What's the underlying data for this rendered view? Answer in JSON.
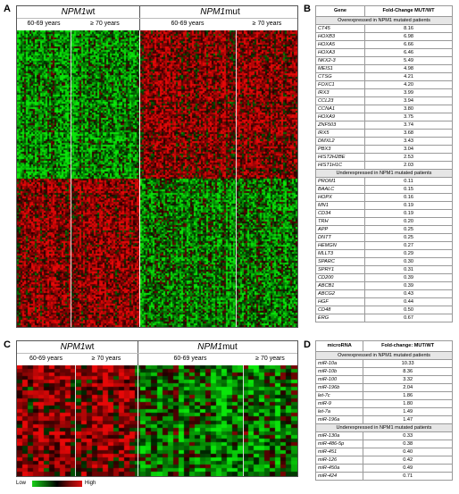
{
  "panels": {
    "a": "A",
    "b": "B",
    "c": "C",
    "d": "D"
  },
  "heatmap_a": {
    "group_wt": "NPM1wt",
    "group_mut": "NPM1mut",
    "ages": [
      "60-69 years",
      "≥ 70 years",
      "60-69 years",
      "≥ 70 years"
    ]
  },
  "heatmap_c": {
    "group_wt": "NPM1wt",
    "group_mut": "NPM1mut",
    "ages": [
      "60-69 years",
      "≥ 70 years",
      "60-69 years",
      "≥ 70 years"
    ]
  },
  "legend": {
    "low": "Low",
    "high": "High",
    "colors": {
      "low": "#18d018",
      "mid": "#000000",
      "high": "#e01010"
    }
  },
  "table_b": {
    "col_gene": "Gene",
    "col_fc": "Fold-Change MUT/WT",
    "section_over": "Overexpressed in NPM1 mutated patients",
    "section_under": "Underexpressed in NPM1 mutated patients",
    "over": [
      {
        "gene": "CT45",
        "fc": "8.16"
      },
      {
        "gene": "HOXB3",
        "fc": "6.98"
      },
      {
        "gene": "HOXA5",
        "fc": "6.66"
      },
      {
        "gene": "HOXA3",
        "fc": "6.46"
      },
      {
        "gene": "NKX2-3",
        "fc": "5.49"
      },
      {
        "gene": "MEIS1",
        "fc": "4.98"
      },
      {
        "gene": "CTSG",
        "fc": "4.21"
      },
      {
        "gene": "FOXC1",
        "fc": "4.20"
      },
      {
        "gene": "IRX3",
        "fc": "3.99"
      },
      {
        "gene": "CCL23",
        "fc": "3.94"
      },
      {
        "gene": "CCNA1",
        "fc": "3.80"
      },
      {
        "gene": "HOXA9",
        "fc": "3.75"
      },
      {
        "gene": "ZNF503",
        "fc": "3.74"
      },
      {
        "gene": "IRX5",
        "fc": "3.68"
      },
      {
        "gene": "DMXL2",
        "fc": "3.43"
      },
      {
        "gene": "PBX3",
        "fc": "3.04"
      },
      {
        "gene": "HIST2H2BE",
        "fc": "2.53"
      },
      {
        "gene": "HIST1H1C",
        "fc": "2.03"
      }
    ],
    "under": [
      {
        "gene": "PROM1",
        "fc": "0.11"
      },
      {
        "gene": "BAALC",
        "fc": "0.15"
      },
      {
        "gene": "HOPX",
        "fc": "0.16"
      },
      {
        "gene": "MN1",
        "fc": "0.19"
      },
      {
        "gene": "CD34",
        "fc": "0.19"
      },
      {
        "gene": "TRH",
        "fc": "0.20"
      },
      {
        "gene": "APP",
        "fc": "0.25"
      },
      {
        "gene": "DNTT",
        "fc": "0.25"
      },
      {
        "gene": "HEMGN",
        "fc": "0.27"
      },
      {
        "gene": "MLLT3",
        "fc": "0.29"
      },
      {
        "gene": "SPARC",
        "fc": "0.30"
      },
      {
        "gene": "SPRY1",
        "fc": "0.31"
      },
      {
        "gene": "CD200",
        "fc": "0.39"
      },
      {
        "gene": "ABCB1",
        "fc": "0.39"
      },
      {
        "gene": "ABCG2",
        "fc": "0.43"
      },
      {
        "gene": "HGF",
        "fc": "0.44"
      },
      {
        "gene": "CD48",
        "fc": "0.50"
      },
      {
        "gene": "ERG",
        "fc": "0.67"
      }
    ]
  },
  "table_d": {
    "col_gene": "microRNA",
    "col_fc": "Fold-change: MUT/WT",
    "section_over": "Overexpressed in NPM1 mutated patients",
    "section_under": "Underexpressed in NPM1 mutated patients",
    "over": [
      {
        "gene": "miR-10a",
        "fc": "10.33"
      },
      {
        "gene": "miR-10b",
        "fc": "8.36"
      },
      {
        "gene": "miR-100",
        "fc": "3.32"
      },
      {
        "gene": "miR-196b",
        "fc": "2.04"
      },
      {
        "gene": "let-7c",
        "fc": "1.86"
      },
      {
        "gene": "miR-9",
        "fc": "1.80"
      },
      {
        "gene": "let-7a",
        "fc": "1.49"
      },
      {
        "gene": "miR-196a",
        "fc": "1.47"
      }
    ],
    "under": [
      {
        "gene": "miR-130a",
        "fc": "0.33"
      },
      {
        "gene": "miR-486-5p",
        "fc": "0.38"
      },
      {
        "gene": "miR-451",
        "fc": "0.40"
      },
      {
        "gene": "miR-126",
        "fc": "0.42"
      },
      {
        "gene": "miR-450a",
        "fc": "0.49"
      },
      {
        "gene": "miR-424",
        "fc": "0.71"
      }
    ]
  }
}
